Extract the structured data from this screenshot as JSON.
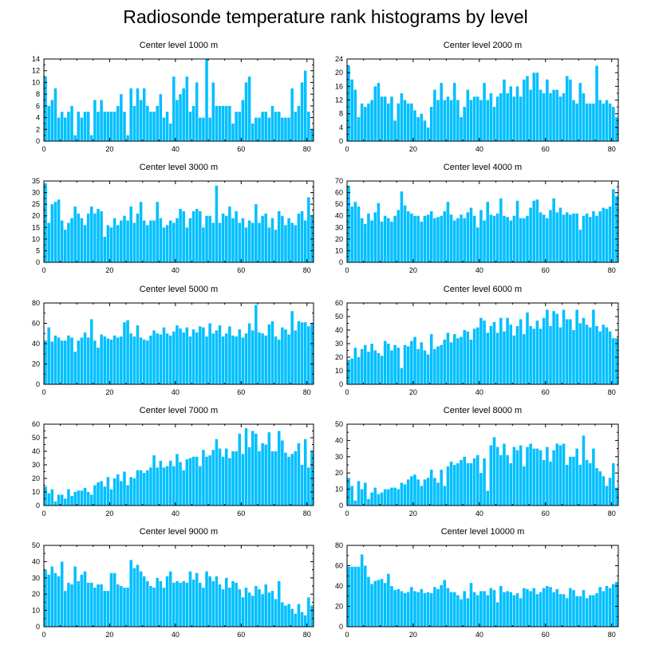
{
  "title": "Radiosonde temperature rank histograms by level",
  "colors": {
    "bar": "#00bfff",
    "axis": "#000000",
    "background": "#ffffff"
  },
  "chart_data": [
    {
      "type": "bar",
      "title": "Center level 1000 m",
      "xlim": [
        0,
        82
      ],
      "ylim": [
        0,
        14
      ],
      "xticks": [
        0,
        20,
        40,
        60,
        80
      ],
      "yticks": [
        0,
        2,
        4,
        6,
        8,
        10,
        12,
        14
      ],
      "x_start": 0,
      "values": [
        11,
        6,
        7,
        9,
        4,
        5,
        4,
        5,
        6,
        1,
        5,
        4,
        5,
        5,
        1,
        7,
        5,
        7,
        5,
        5,
        5,
        5,
        6,
        8,
        5,
        1,
        9,
        6,
        9,
        7,
        9,
        6,
        5,
        5,
        6,
        8,
        4,
        5,
        3,
        11,
        7,
        8,
        9,
        11,
        5,
        6,
        10,
        4,
        4,
        14,
        4,
        10,
        6,
        6,
        6,
        6,
        6,
        3,
        5,
        5,
        7,
        10,
        11,
        3,
        4,
        4,
        5,
        5,
        4,
        6,
        5,
        5,
        4,
        4,
        4,
        9,
        5,
        6,
        10,
        12,
        5,
        2
      ]
    },
    {
      "type": "bar",
      "title": "Center level 2000 m",
      "xlim": [
        0,
        82
      ],
      "ylim": [
        0,
        24
      ],
      "xticks": [
        0,
        20,
        40,
        60,
        80
      ],
      "yticks": [
        0,
        4,
        8,
        12,
        16,
        20,
        24
      ],
      "x_start": 0,
      "values": [
        22,
        18,
        15,
        7,
        11,
        10,
        11,
        12,
        16,
        17,
        13,
        13,
        11,
        13,
        6,
        11,
        14,
        12,
        11,
        11,
        9,
        7,
        8,
        6,
        4,
        10,
        15,
        12,
        17,
        12,
        13,
        12,
        17,
        12,
        7,
        10,
        15,
        12,
        13,
        13,
        12,
        17,
        12,
        14,
        10,
        13,
        14,
        18,
        14,
        16,
        13,
        16,
        13,
        18,
        19,
        15,
        20,
        20,
        15,
        14,
        18,
        14,
        15,
        15,
        13,
        14,
        19,
        18,
        12,
        11,
        17,
        14,
        11,
        11,
        11,
        22,
        12,
        11,
        12,
        11,
        10,
        7
      ]
    },
    {
      "type": "bar",
      "title": "Center level 3000 m",
      "xlim": [
        0,
        82
      ],
      "ylim": [
        0,
        35
      ],
      "xticks": [
        0,
        20,
        40,
        60,
        80
      ],
      "yticks": [
        0,
        5,
        10,
        15,
        20,
        25,
        30,
        35
      ],
      "x_start": 0,
      "values": [
        34,
        17,
        25,
        26,
        27,
        18,
        14,
        17,
        19,
        24,
        21,
        19,
        16,
        21,
        24,
        21,
        23,
        22,
        11,
        16,
        15,
        19,
        16,
        18,
        20,
        18,
        24,
        17,
        21,
        26,
        18,
        16,
        18,
        18,
        26,
        19,
        15,
        16,
        18,
        17,
        19,
        23,
        22,
        15,
        19,
        22,
        23,
        22,
        15,
        20,
        20,
        17,
        33,
        17,
        21,
        20,
        24,
        19,
        22,
        17,
        19,
        15,
        18,
        17,
        25,
        17,
        20,
        21,
        15,
        19,
        14,
        22,
        20,
        16,
        19,
        17,
        16,
        21,
        22,
        18,
        28,
        20
      ]
    },
    {
      "type": "bar",
      "title": "Center level 4000 m",
      "xlim": [
        0,
        82
      ],
      "ylim": [
        0,
        70
      ],
      "xticks": [
        0,
        20,
        40,
        60,
        80
      ],
      "yticks": [
        0,
        10,
        20,
        30,
        40,
        50,
        60,
        70
      ],
      "x_start": 0,
      "values": [
        66,
        48,
        52,
        48,
        38,
        33,
        42,
        36,
        43,
        51,
        35,
        40,
        38,
        35,
        40,
        45,
        61,
        49,
        44,
        42,
        40,
        40,
        35,
        40,
        41,
        44,
        38,
        39,
        40,
        44,
        52,
        41,
        36,
        38,
        41,
        38,
        43,
        47,
        40,
        30,
        45,
        36,
        52,
        41,
        40,
        42,
        55,
        40,
        39,
        36,
        40,
        53,
        38,
        38,
        40,
        47,
        53,
        54,
        43,
        41,
        38,
        45,
        55,
        43,
        47,
        41,
        43,
        41,
        42,
        42,
        28,
        40,
        42,
        39,
        44,
        40,
        44,
        47,
        46,
        48,
        63,
        57
      ]
    },
    {
      "type": "bar",
      "title": "Center level 5000 m",
      "xlim": [
        0,
        82
      ],
      "ylim": [
        0,
        80
      ],
      "xticks": [
        0,
        20,
        40,
        60,
        80
      ],
      "yticks": [
        0,
        20,
        40,
        60,
        80
      ],
      "x_start": 0,
      "values": [
        43,
        56,
        42,
        48,
        46,
        43,
        43,
        48,
        46,
        32,
        43,
        46,
        51,
        46,
        64,
        43,
        36,
        49,
        47,
        45,
        44,
        48,
        46,
        47,
        61,
        63,
        50,
        47,
        58,
        46,
        44,
        43,
        48,
        53,
        50,
        49,
        56,
        50,
        48,
        52,
        58,
        55,
        51,
        56,
        47,
        54,
        51,
        57,
        56,
        47,
        60,
        50,
        53,
        58,
        47,
        50,
        57,
        48,
        47,
        54,
        46,
        50,
        60,
        53,
        78,
        51,
        50,
        48,
        59,
        62,
        47,
        44,
        56,
        54,
        49,
        72,
        53,
        62,
        61,
        61,
        57,
        60
      ]
    },
    {
      "type": "bar",
      "title": "Center level 6000 m",
      "xlim": [
        0,
        82
      ],
      "ylim": [
        0,
        60
      ],
      "xticks": [
        0,
        20,
        40,
        60,
        80
      ],
      "yticks": [
        0,
        10,
        20,
        30,
        40,
        50,
        60
      ],
      "x_start": 0,
      "values": [
        18,
        19,
        27,
        20,
        26,
        29,
        24,
        30,
        25,
        23,
        21,
        32,
        30,
        25,
        29,
        27,
        12,
        29,
        28,
        32,
        35,
        26,
        31,
        25,
        22,
        37,
        26,
        28,
        29,
        33,
        38,
        31,
        37,
        34,
        35,
        40,
        39,
        33,
        41,
        42,
        49,
        47,
        38,
        43,
        46,
        38,
        49,
        39,
        49,
        44,
        36,
        43,
        48,
        37,
        53,
        43,
        41,
        47,
        41,
        49,
        55,
        43,
        54,
        52,
        42,
        55,
        48,
        48,
        40,
        55,
        45,
        49,
        44,
        42,
        55,
        43,
        39,
        44,
        42,
        39,
        34,
        34
      ]
    },
    {
      "type": "bar",
      "title": "Center level 7000 m",
      "xlim": [
        0,
        82
      ],
      "ylim": [
        0,
        60
      ],
      "xticks": [
        0,
        20,
        40,
        60,
        80
      ],
      "yticks": [
        0,
        10,
        20,
        30,
        40,
        50,
        60
      ],
      "x_start": 0,
      "values": [
        14,
        9,
        12,
        3,
        8,
        8,
        5,
        12,
        7,
        10,
        11,
        11,
        13,
        10,
        8,
        15,
        17,
        18,
        14,
        21,
        12,
        20,
        23,
        18,
        25,
        15,
        21,
        20,
        26,
        26,
        24,
        26,
        28,
        37,
        28,
        33,
        28,
        29,
        33,
        29,
        38,
        32,
        26,
        34,
        35,
        36,
        36,
        29,
        41,
        36,
        37,
        41,
        49,
        42,
        36,
        42,
        35,
        40,
        40,
        53,
        38,
        57,
        43,
        55,
        53,
        40,
        46,
        45,
        54,
        40,
        40,
        55,
        48,
        39,
        36,
        38,
        40,
        46,
        30,
        49,
        28,
        40
      ]
    },
    {
      "type": "bar",
      "title": "Center level 8000 m",
      "xlim": [
        0,
        82
      ],
      "ylim": [
        0,
        50
      ],
      "xticks": [
        0,
        20,
        40,
        60,
        80
      ],
      "yticks": [
        0,
        10,
        20,
        30,
        40,
        50
      ],
      "x_start": 0,
      "values": [
        17,
        12,
        3,
        15,
        10,
        14,
        4,
        8,
        11,
        7,
        8,
        10,
        10,
        11,
        11,
        10,
        14,
        13,
        16,
        18,
        19,
        16,
        12,
        16,
        17,
        22,
        17,
        14,
        22,
        12,
        24,
        27,
        25,
        26,
        28,
        30,
        26,
        26,
        29,
        31,
        20,
        29,
        9,
        37,
        42,
        36,
        31,
        38,
        31,
        26,
        36,
        34,
        37,
        24,
        36,
        38,
        35,
        35,
        34,
        28,
        36,
        27,
        34,
        38,
        37,
        38,
        25,
        30,
        30,
        35,
        25,
        43,
        28,
        26,
        35,
        23,
        21,
        18,
        12,
        17,
        26,
        11
      ]
    },
    {
      "type": "bar",
      "title": "Center level 9000 m",
      "xlim": [
        0,
        82
      ],
      "ylim": [
        0,
        50
      ],
      "xticks": [
        0,
        20,
        40,
        60,
        80
      ],
      "yticks": [
        0,
        10,
        20,
        30,
        40,
        50
      ],
      "x_start": 0,
      "values": [
        35,
        32,
        37,
        33,
        31,
        40,
        22,
        27,
        26,
        37,
        28,
        32,
        34,
        27,
        27,
        24,
        26,
        26,
        22,
        22,
        33,
        33,
        26,
        25,
        24,
        24,
        41,
        36,
        38,
        34,
        31,
        28,
        25,
        24,
        30,
        28,
        24,
        31,
        34,
        27,
        28,
        27,
        28,
        27,
        34,
        29,
        33,
        27,
        24,
        34,
        31,
        28,
        31,
        26,
        23,
        30,
        24,
        28,
        27,
        23,
        18,
        24,
        21,
        19,
        25,
        23,
        20,
        26,
        21,
        22,
        17,
        28,
        15,
        13,
        14,
        11,
        8,
        14,
        9,
        7,
        18,
        13
      ]
    },
    {
      "type": "bar",
      "title": "Center level 10000 m",
      "xlim": [
        0,
        82
      ],
      "ylim": [
        0,
        80
      ],
      "xticks": [
        0,
        20,
        40,
        60,
        80
      ],
      "yticks": [
        0,
        20,
        40,
        60,
        80
      ],
      "x_start": 0,
      "values": [
        59,
        59,
        59,
        59,
        71,
        60,
        49,
        42,
        45,
        46,
        47,
        43,
        52,
        40,
        36,
        37,
        35,
        33,
        34,
        39,
        35,
        34,
        37,
        33,
        34,
        33,
        39,
        37,
        41,
        46,
        38,
        34,
        34,
        31,
        27,
        35,
        28,
        43,
        34,
        31,
        35,
        35,
        31,
        38,
        36,
        24,
        40,
        34,
        35,
        34,
        31,
        33,
        28,
        38,
        37,
        35,
        38,
        32,
        34,
        38,
        40,
        39,
        34,
        37,
        32,
        32,
        28,
        38,
        36,
        30,
        30,
        36,
        28,
        31,
        31,
        33,
        39,
        35,
        40,
        38,
        42,
        44
      ]
    }
  ]
}
